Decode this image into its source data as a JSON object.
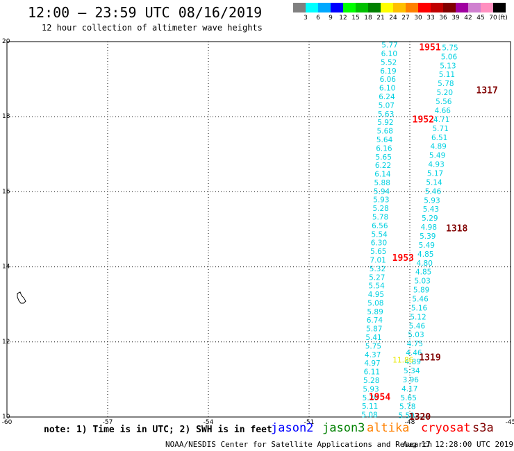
{
  "header": {
    "title": "12:00 — 23:59 UTC 08/16/2019",
    "subtitle": "12 hour collection of altimeter wave heights"
  },
  "colorbar": {
    "unit": "(ft)",
    "bins": [
      {
        "label": "3",
        "color": "#808080"
      },
      {
        "label": "6",
        "color": "#00ffff"
      },
      {
        "label": "9",
        "color": "#00a8ff"
      },
      {
        "label": "12",
        "color": "#0000ff"
      },
      {
        "label": "15",
        "color": "#00ff00"
      },
      {
        "label": "18",
        "color": "#00c000"
      },
      {
        "label": "21",
        "color": "#008000"
      },
      {
        "label": "24",
        "color": "#ffff00"
      },
      {
        "label": "27",
        "color": "#ffc000"
      },
      {
        "label": "30",
        "color": "#ff8000"
      },
      {
        "label": "33",
        "color": "#ff0000"
      },
      {
        "label": "36",
        "color": "#c00000"
      },
      {
        "label": "39",
        "color": "#800000"
      },
      {
        "label": "42",
        "color": "#a000a0"
      },
      {
        "label": "45",
        "color": "#d080d0"
      },
      {
        "label": "70",
        "color": "#ff90c0"
      },
      {
        "label": "",
        "color": "#000000"
      }
    ]
  },
  "axes": {
    "lon_ticks": [
      "-60",
      "-57",
      "-54",
      "-51",
      "-48",
      "-45"
    ],
    "lat_ticks": [
      "20",
      "18",
      "16",
      "14",
      "12",
      "10"
    ],
    "lon_range": [
      -60,
      -45
    ],
    "lat_range": [
      10,
      20
    ]
  },
  "tracks": {
    "color": "#00d0e0",
    "track_a": {
      "lon_start": -48.6,
      "lon_end": -49.2,
      "values": [
        "5.77",
        "6.10",
        "5.52",
        "6.19",
        "6.06",
        "6.10",
        "6.24",
        "5.07",
        "5.63",
        "5.92",
        "5.68",
        "5.64",
        "6.16",
        "5.65",
        "6.22",
        "6.14",
        "5.88",
        "5.94",
        "5.93",
        "5.28",
        "5.78",
        "6.56",
        "5.54",
        "6.30",
        "5.65",
        "7.01",
        "5.32",
        "5.27",
        "5.54",
        "4.95",
        "5.08",
        "5.89",
        "6.74",
        "5.87",
        "5.41",
        "5.75",
        "4.37",
        "4.97",
        "6.11",
        "5.28",
        "5.93",
        "5.20",
        "5.11",
        "5.08"
      ]
    },
    "track_b": {
      "lon_start": -46.8,
      "lon_end": -48.1,
      "values": [
        "5.75",
        "5.06",
        "5.13",
        "5.11",
        "5.78",
        "5.20",
        "5.56",
        "4.66",
        "4.71",
        "5.71",
        "6.51",
        "4.89",
        "5.49",
        "4.93",
        "5.17",
        "5.14",
        "5.46",
        "5.93",
        "5.43",
        "5.29",
        "4.98",
        "5.39",
        "5.49",
        "4.85",
        "4.80",
        "4.85",
        "5.03",
        "5.89",
        "5.46",
        "5.16",
        "5.12",
        "5.46",
        "5.03",
        "4.75",
        "4.46",
        "4.89",
        "5.34",
        "3.96",
        "4.17",
        "5.65",
        "5.78",
        "5.50"
      ]
    },
    "yellow_value": "11.86"
  },
  "times": [
    {
      "label": "1951",
      "color": "#ff0000",
      "lon": -47.4,
      "lat": 19.84
    },
    {
      "label": "1952",
      "color": "#ff0000",
      "lon": -47.6,
      "lat": 17.92
    },
    {
      "label": "1953",
      "color": "#ff0000",
      "lon": -48.2,
      "lat": 14.23
    },
    {
      "label": "1954",
      "color": "#ff0000",
      "lon": -48.9,
      "lat": 10.53
    },
    {
      "label": "1317",
      "color": "#800000",
      "lon": -45.7,
      "lat": 18.7
    },
    {
      "label": "1318",
      "color": "#800000",
      "lon": -46.6,
      "lat": 15.02
    },
    {
      "label": "1319",
      "color": "#800000",
      "lon": -47.4,
      "lat": 11.58
    },
    {
      "label": "1320",
      "color": "#800000",
      "lon": -47.7,
      "lat": 10.0
    }
  ],
  "footer": {
    "note": "note: 1) Time is in UTC; 2) SWH is in feet",
    "satellites": [
      {
        "name": "jason2",
        "color": "#0000ff"
      },
      {
        "name": "jason3",
        "color": "#008000"
      },
      {
        "name": "altika",
        "color": "#ff8000"
      },
      {
        "name": "cryosat",
        "color": "#ff0000"
      },
      {
        "name": "s3a",
        "color": "#800000"
      }
    ],
    "credit": "NOAA/NESDIS Center for Satellite Applications and Research",
    "stamp": "Aug 17 12:28:00 UTC 2019"
  }
}
